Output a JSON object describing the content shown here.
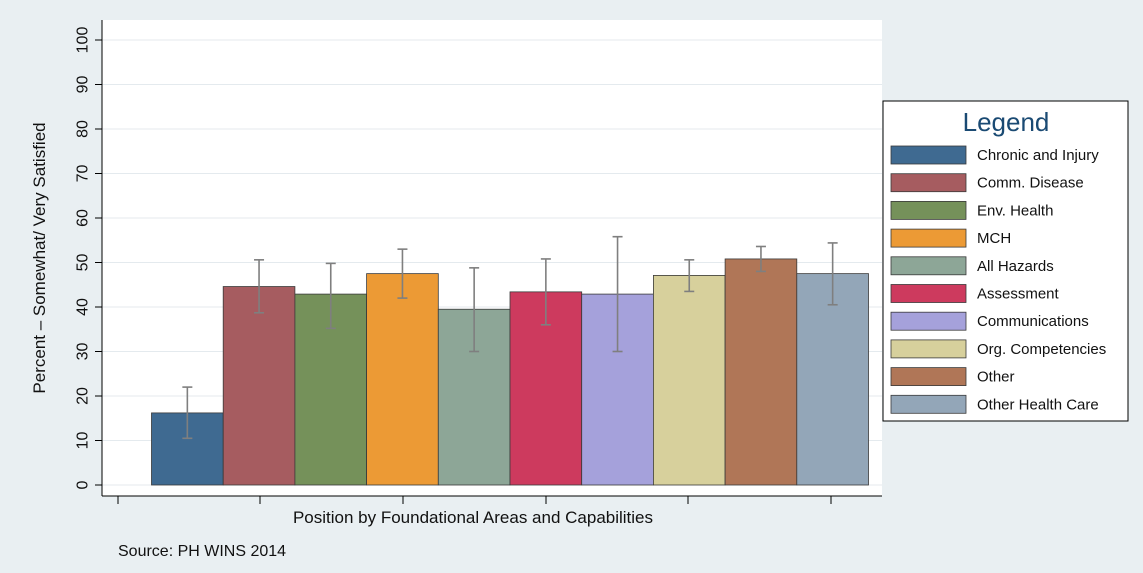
{
  "chart_data": {
    "type": "bar",
    "xlabel": "Position by Foundational Areas and Capabilities",
    "ylabel": "Percent – Somewhat/ Very Satisfied",
    "ylim": [
      0,
      100
    ],
    "yticks": [
      0,
      10,
      20,
      30,
      40,
      50,
      60,
      70,
      80,
      90,
      100
    ],
    "grid": true,
    "legend_title": "Legend",
    "legend_position": "right",
    "note": "Source: PH WINS 2014",
    "series": [
      {
        "name": "Chronic and Injury",
        "value": 16.2,
        "ci": [
          10.5,
          22.0
        ],
        "color": "#3f6a91"
      },
      {
        "name": "Comm. Disease",
        "value": 44.6,
        "ci": [
          38.7,
          50.6
        ],
        "color": "#a65c60"
      },
      {
        "name": "Env. Health",
        "value": 42.9,
        "ci": [
          35.2,
          49.8
        ],
        "color": "#75915a"
      },
      {
        "name": "MCH",
        "value": 47.5,
        "ci": [
          42.0,
          53.0
        ],
        "color": "#ec9a35"
      },
      {
        "name": "All Hazards",
        "value": 39.5,
        "ci": [
          30.0,
          48.8
        ],
        "color": "#8da697"
      },
      {
        "name": "Assessment",
        "value": 43.4,
        "ci": [
          36.0,
          50.8
        ],
        "color": "#cd3a5e"
      },
      {
        "name": "Communications",
        "value": 42.9,
        "ci": [
          30.0,
          55.8
        ],
        "color": "#a5a1db"
      },
      {
        "name": "Org. Competencies",
        "value": 47.1,
        "ci": [
          43.5,
          50.6
        ],
        "color": "#d7d09c"
      },
      {
        "name": "Other",
        "value": 50.8,
        "ci": [
          48.0,
          53.6
        ],
        "color": "#b07657"
      },
      {
        "name": "Other Health Care",
        "value": 47.5,
        "ci": [
          40.5,
          54.4
        ],
        "color": "#93a6b8"
      }
    ]
  }
}
